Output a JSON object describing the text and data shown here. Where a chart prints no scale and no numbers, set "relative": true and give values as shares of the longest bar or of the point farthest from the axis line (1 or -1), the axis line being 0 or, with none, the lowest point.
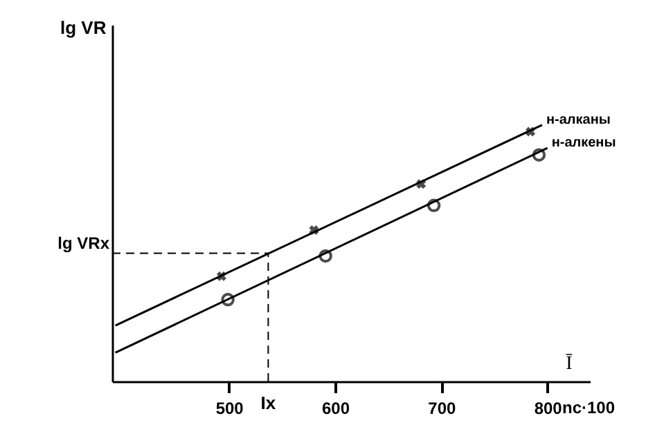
{
  "chart_data": {
    "type": "line",
    "relative": true,
    "xlabel": "nc·100",
    "ylabel": "lg VR",
    "xlim": [
      390,
      840
    ],
    "xticks": [
      500,
      600,
      700,
      800
    ],
    "grid": false,
    "series": [
      {
        "name": "н-алканы",
        "color": "#000000",
        "line_style": "solid",
        "marker": "none",
        "x": [
          393,
          795
        ],
        "values": [
          0.218,
          1
        ]
      },
      {
        "name": "н-алкены",
        "color": "#000000",
        "line_style": "solid",
        "marker": "none",
        "x": [
          393,
          800
        ],
        "values": [
          0.112,
          0.91
        ]
      },
      {
        "color": "#000000",
        "type": "scatter",
        "marker": "cross",
        "x": [
          493,
          580,
          681,
          784
        ],
        "values": [
          0.41,
          0.59,
          0.77,
          0.974
        ]
      },
      {
        "color": "#000000",
        "type": "scatter",
        "marker": "circle",
        "x": [
          499,
          591,
          693,
          792
        ],
        "values": [
          0.319,
          0.489,
          0.686,
          0.883
        ]
      }
    ],
    "ref_lines": [
      {
        "axis": "x",
        "value": 537,
        "label": "Ix",
        "line_style": "dashed"
      },
      {
        "axis": "y",
        "value": 0.5,
        "label": "lg VRx",
        "line_style": "dashed"
      }
    ],
    "annotations": [
      "Ī"
    ]
  }
}
